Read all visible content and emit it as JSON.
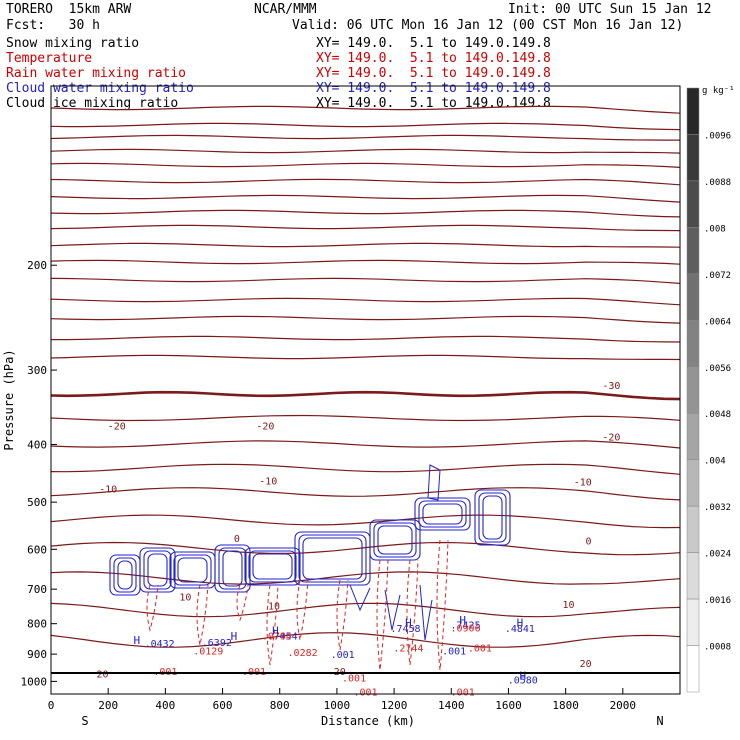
{
  "header": {
    "model": "TORERO  15km ARW",
    "org": "NCAR/MMM",
    "init": "Init: 00 UTC Sun 15 Jan 12",
    "fcst": "Fcst:   30 h",
    "valid": "Valid: 06 UTC Mon 16 Jan 12 (00 CST Mon 16 Jan 12)"
  },
  "fields": [
    {
      "name": "Snow mixing ratio",
      "xy": "XY= 149.0.  5.1 to 149.0.149.8",
      "color": "#000000"
    },
    {
      "name": "Temperature",
      "xy": "XY= 149.0.  5.1 to 149.0.149.8",
      "color": "#cc0000"
    },
    {
      "name": "Rain water mixing ratio",
      "xy": "XY= 149.0.  5.1 to 149.0.149.8",
      "color": "#cc0000"
    },
    {
      "name": "Cloud water mixing ratio",
      "xy": "XY= 149.0.  5.1 to 149.0.149.8",
      "color": "#2222cc"
    },
    {
      "name": "Cloud ice mixing ratio",
      "xy": "XY= 149.0.  5.1 to 149.0.149.8",
      "color": "#000000"
    }
  ],
  "colorbar": {
    "unit": "g kg⁻¹",
    "labels": [
      ".0096",
      ".0088",
      ".008",
      ".0072",
      ".0064",
      ".0056",
      ".0048",
      ".004",
      ".0032",
      ".0024",
      ".0016",
      ".0008"
    ]
  },
  "chart_data": {
    "type": "contour",
    "xlabel": "Distance (km)",
    "ylabel": "Pressure (hPa)",
    "x_ticks": [
      0,
      200,
      400,
      600,
      800,
      1000,
      1200,
      1400,
      1600,
      1800,
      2000
    ],
    "y_ticks": [
      200,
      300,
      400,
      500,
      600,
      700,
      800,
      900,
      1000
    ],
    "xlim": [
      0,
      2200
    ],
    "ylim": [
      1050,
      100
    ],
    "y_scale": "log",
    "x_end_labels": [
      "S",
      "N"
    ],
    "temperature_labels": [
      {
        "x": 1960,
        "p": 318,
        "text": "-30"
      },
      {
        "x": 230,
        "p": 372,
        "text": "-20"
      },
      {
        "x": 750,
        "p": 372,
        "text": "-20"
      },
      {
        "x": 1960,
        "p": 388,
        "text": "-20"
      },
      {
        "x": 200,
        "p": 474,
        "text": "-10"
      },
      {
        "x": 760,
        "p": 460,
        "text": "-10"
      },
      {
        "x": 1860,
        "p": 462,
        "text": "-10"
      },
      {
        "x": 650,
        "p": 574,
        "text": "0"
      },
      {
        "x": 1880,
        "p": 580,
        "text": "0"
      },
      {
        "x": 470,
        "p": 720,
        "text": "10"
      },
      {
        "x": 780,
        "p": 745,
        "text": "10"
      },
      {
        "x": 1810,
        "p": 742,
        "text": "10"
      },
      {
        "x": 180,
        "p": 970,
        "text": "20"
      },
      {
        "x": 1870,
        "p": 932,
        "text": "20"
      },
      {
        "x": 1010,
        "p": 960,
        "text": "20"
      }
    ],
    "cloud_water_labels": [
      {
        "x": 380,
        "p": 862,
        "text": ".0432"
      },
      {
        "x": 580,
        "p": 858,
        "text": ".6392"
      },
      {
        "x": 810,
        "p": 837,
        "text": ".7454"
      },
      {
        "x": 1240,
        "p": 813,
        "text": ".7458"
      },
      {
        "x": 1450,
        "p": 803,
        "text": ".7425"
      },
      {
        "x": 1640,
        "p": 813,
        "text": ".4841"
      },
      {
        "x": 1020,
        "p": 900,
        "text": ".001"
      },
      {
        "x": 1410,
        "p": 887,
        "text": ".001"
      },
      {
        "x": 1650,
        "p": 992,
        "text": ".0580"
      }
    ],
    "rain_water_labels": [
      {
        "x": 790,
        "p": 837,
        "text": ".0794"
      },
      {
        "x": 550,
        "p": 888,
        "text": ".0129"
      },
      {
        "x": 880,
        "p": 893,
        "text": ".0282"
      },
      {
        "x": 1250,
        "p": 878,
        "text": ".2744"
      },
      {
        "x": 1450,
        "p": 812,
        "text": ".0906"
      },
      {
        "x": 1500,
        "p": 878,
        "text": ".001"
      },
      {
        "x": 400,
        "p": 960,
        "text": ".001"
      },
      {
        "x": 710,
        "p": 960,
        "text": ".001"
      },
      {
        "x": 1060,
        "p": 985,
        "text": ".001"
      },
      {
        "x": 1100,
        "p": 1040,
        "text": ".001"
      },
      {
        "x": 1440,
        "p": 1040,
        "text": ".001"
      }
    ],
    "highs": [
      {
        "x": 300,
        "p": 852,
        "series": "cloud_water"
      },
      {
        "x": 640,
        "p": 839,
        "series": "cloud_water"
      },
      {
        "x": 785,
        "p": 822,
        "series": "cloud_water"
      },
      {
        "x": 1250,
        "p": 797,
        "series": "cloud_water"
      },
      {
        "x": 1440,
        "p": 788,
        "series": "cloud_water"
      },
      {
        "x": 1640,
        "p": 797,
        "series": "cloud_water"
      },
      {
        "x": 1650,
        "p": 978,
        "series": "cloud_water"
      }
    ]
  }
}
